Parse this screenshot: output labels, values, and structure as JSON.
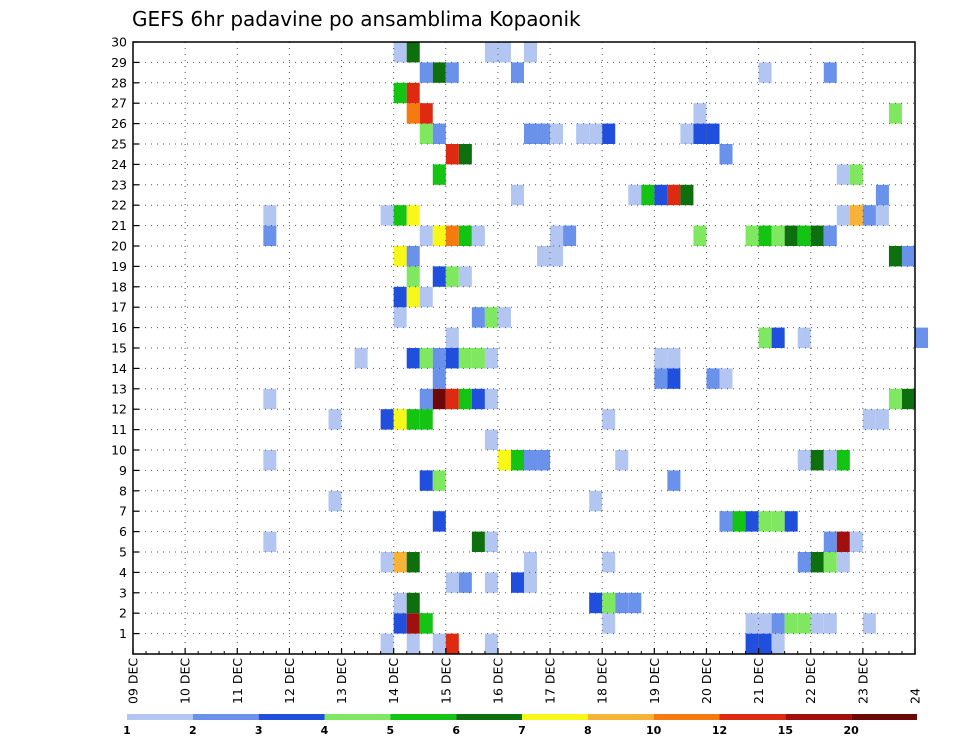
{
  "chart_data": {
    "type": "heatmap",
    "title": "GEFS 6hr padavine po ansamblima Kopaonik",
    "xlabel": "",
    "ylabel": "",
    "x_ticks": [
      "09 DEC",
      "10 DEC",
      "11 DEC",
      "12 DEC",
      "13 DEC",
      "14 DEC",
      "15 DEC",
      "16 DEC",
      "17 DEC",
      "18 DEC",
      "19 DEC",
      "20 DEC",
      "21 DEC",
      "22 DEC",
      "23 DEC",
      "24"
    ],
    "xlim": [
      "09 DEC 00Z",
      "24 DEC 00Z"
    ],
    "y_ticks": [
      1,
      2,
      3,
      4,
      5,
      6,
      7,
      8,
      9,
      10,
      11,
      12,
      13,
      14,
      15,
      16,
      17,
      18,
      19,
      20,
      21,
      22,
      23,
      24,
      25,
      26,
      27,
      28,
      29,
      30
    ],
    "ylim": [
      0,
      30
    ],
    "grid": true,
    "legend": {
      "placement": "bottom",
      "labels": [
        "1",
        "2",
        "3",
        "4",
        "5",
        "6",
        "7",
        "8",
        "10",
        "12",
        "15",
        "20"
      ],
      "colors": [
        "#b3c6f2",
        "#6a92ea",
        "#1f4fdc",
        "#7fe860",
        "#13c413",
        "#0e6f0e",
        "#f7f71a",
        "#f7b338",
        "#f57a10",
        "#de2a10",
        "#a20f0f",
        "#6c0808"
      ]
    },
    "cells_note_level": "cat index 0..11 = colors above",
    "cells": [
      [
        13.75,
        0,
        0
      ],
      [
        14.25,
        0,
        0
      ],
      [
        14.75,
        0,
        0
      ],
      [
        15.0,
        0,
        9
      ],
      [
        15.75,
        0,
        0
      ],
      [
        20.75,
        0,
        2
      ],
      [
        21.0,
        0,
        2
      ],
      [
        21.25,
        0,
        0
      ],
      [
        14.0,
        1,
        2
      ],
      [
        14.25,
        1,
        10
      ],
      [
        14.5,
        1,
        4
      ],
      [
        18.0,
        1,
        0
      ],
      [
        20.75,
        1,
        0
      ],
      [
        21.0,
        1,
        0
      ],
      [
        21.25,
        1,
        1
      ],
      [
        21.5,
        1,
        3
      ],
      [
        21.75,
        1,
        3
      ],
      [
        22.0,
        1,
        0
      ],
      [
        22.25,
        1,
        0
      ],
      [
        23.0,
        1,
        0
      ],
      [
        14.0,
        2,
        0
      ],
      [
        14.25,
        2,
        5
      ],
      [
        17.75,
        2,
        2
      ],
      [
        18.0,
        2,
        3
      ],
      [
        18.25,
        2,
        1
      ],
      [
        18.5,
        2,
        1
      ],
      [
        15.0,
        3,
        0
      ],
      [
        15.25,
        3,
        1
      ],
      [
        15.75,
        3,
        0
      ],
      [
        16.25,
        3,
        2
      ],
      [
        16.5,
        3,
        0
      ],
      [
        13.75,
        4,
        0
      ],
      [
        14.0,
        4,
        7
      ],
      [
        14.25,
        4,
        5
      ],
      [
        16.5,
        4,
        0
      ],
      [
        18.0,
        4,
        0
      ],
      [
        21.75,
        4,
        1
      ],
      [
        22.0,
        4,
        5
      ],
      [
        22.25,
        4,
        3
      ],
      [
        22.5,
        4,
        0
      ],
      [
        11.5,
        5,
        0
      ],
      [
        15.5,
        5,
        5
      ],
      [
        15.75,
        5,
        0
      ],
      [
        22.25,
        5,
        1
      ],
      [
        22.5,
        5,
        10
      ],
      [
        22.75,
        5,
        0
      ],
      [
        14.75,
        6,
        2
      ],
      [
        20.25,
        6,
        1
      ],
      [
        20.5,
        6,
        4
      ],
      [
        20.75,
        6,
        2
      ],
      [
        21.0,
        6,
        3
      ],
      [
        21.25,
        6,
        3
      ],
      [
        21.5,
        6,
        2
      ],
      [
        12.75,
        7,
        0
      ],
      [
        17.75,
        7,
        0
      ],
      [
        14.5,
        8,
        2
      ],
      [
        14.75,
        8,
        3
      ],
      [
        19.25,
        8,
        1
      ],
      [
        11.5,
        9,
        0
      ],
      [
        16.0,
        9,
        6
      ],
      [
        16.25,
        9,
        4
      ],
      [
        16.5,
        9,
        1
      ],
      [
        16.75,
        9,
        1
      ],
      [
        18.25,
        9,
        0
      ],
      [
        21.75,
        9,
        0
      ],
      [
        22.0,
        9,
        5
      ],
      [
        22.25,
        9,
        0
      ],
      [
        22.5,
        9,
        4
      ],
      [
        15.75,
        10,
        0
      ],
      [
        12.75,
        11,
        0
      ],
      [
        13.75,
        11,
        2
      ],
      [
        14.0,
        11,
        6
      ],
      [
        14.25,
        11,
        4
      ],
      [
        14.5,
        11,
        4
      ],
      [
        18.0,
        11,
        0
      ],
      [
        23.0,
        11,
        0
      ],
      [
        23.25,
        11,
        0
      ],
      [
        11.5,
        12,
        0
      ],
      [
        14.5,
        12,
        1
      ],
      [
        14.75,
        12,
        11
      ],
      [
        15.0,
        12,
        9
      ],
      [
        15.25,
        12,
        4
      ],
      [
        15.5,
        12,
        2
      ],
      [
        15.75,
        12,
        0
      ],
      [
        23.5,
        12,
        3
      ],
      [
        23.75,
        12,
        5
      ],
      [
        14.75,
        13,
        1
      ],
      [
        19.0,
        13,
        1
      ],
      [
        19.25,
        13,
        2
      ],
      [
        20.0,
        13,
        1
      ],
      [
        20.25,
        13,
        0
      ],
      [
        13.25,
        14,
        0
      ],
      [
        14.25,
        14,
        2
      ],
      [
        14.5,
        14,
        3
      ],
      [
        14.75,
        14,
        1
      ],
      [
        15.0,
        14,
        2
      ],
      [
        15.25,
        14,
        3
      ],
      [
        15.5,
        14,
        3
      ],
      [
        15.75,
        14,
        0
      ],
      [
        19.0,
        14,
        0
      ],
      [
        19.25,
        14,
        0
      ],
      [
        15.0,
        15,
        0
      ],
      [
        21.0,
        15,
        3
      ],
      [
        21.25,
        15,
        2
      ],
      [
        21.75,
        15,
        0
      ],
      [
        24.0,
        15,
        1
      ],
      [
        14.0,
        16,
        0
      ],
      [
        15.5,
        16,
        1
      ],
      [
        15.75,
        16,
        3
      ],
      [
        16.0,
        16,
        0
      ],
      [
        14.0,
        17,
        2
      ],
      [
        14.25,
        17,
        6
      ],
      [
        14.5,
        17,
        0
      ],
      [
        14.25,
        18,
        3
      ],
      [
        14.75,
        18,
        2
      ],
      [
        15.0,
        18,
        3
      ],
      [
        15.25,
        18,
        0
      ],
      [
        14.0,
        19,
        6
      ],
      [
        14.25,
        19,
        1
      ],
      [
        16.75,
        19,
        0
      ],
      [
        17.0,
        19,
        0
      ],
      [
        23.5,
        19,
        5
      ],
      [
        23.75,
        19,
        1
      ],
      [
        11.5,
        20,
        1
      ],
      [
        14.5,
        20,
        0
      ],
      [
        14.75,
        20,
        6
      ],
      [
        15.0,
        20,
        8
      ],
      [
        15.25,
        20,
        4
      ],
      [
        15.5,
        20,
        0
      ],
      [
        17.0,
        20,
        0
      ],
      [
        17.25,
        20,
        1
      ],
      [
        19.75,
        20,
        3
      ],
      [
        20.75,
        20,
        3
      ],
      [
        21.0,
        20,
        4
      ],
      [
        21.25,
        20,
        3
      ],
      [
        21.5,
        20,
        5
      ],
      [
        21.75,
        20,
        4
      ],
      [
        22.0,
        20,
        5
      ],
      [
        22.25,
        20,
        1
      ],
      [
        11.5,
        21,
        0
      ],
      [
        13.75,
        21,
        0
      ],
      [
        14.0,
        21,
        4
      ],
      [
        14.25,
        21,
        6
      ],
      [
        22.5,
        21,
        0
      ],
      [
        22.75,
        21,
        7
      ],
      [
        23.0,
        21,
        1
      ],
      [
        23.25,
        21,
        0
      ],
      [
        16.25,
        22,
        0
      ],
      [
        18.5,
        22,
        0
      ],
      [
        18.75,
        22,
        4
      ],
      [
        19.0,
        22,
        2
      ],
      [
        19.25,
        22,
        9
      ],
      [
        19.5,
        22,
        5
      ],
      [
        23.25,
        22,
        1
      ],
      [
        14.75,
        23,
        4
      ],
      [
        22.5,
        23,
        0
      ],
      [
        22.75,
        23,
        3
      ],
      [
        15.0,
        24,
        9
      ],
      [
        15.25,
        24,
        5
      ],
      [
        20.25,
        24,
        1
      ],
      [
        14.5,
        25,
        3
      ],
      [
        14.75,
        25,
        1
      ],
      [
        16.5,
        25,
        1
      ],
      [
        16.75,
        25,
        1
      ],
      [
        17.0,
        25,
        0
      ],
      [
        17.5,
        25,
        0
      ],
      [
        17.75,
        25,
        0
      ],
      [
        18.0,
        25,
        2
      ],
      [
        19.5,
        25,
        0
      ],
      [
        19.75,
        25,
        2
      ],
      [
        20.0,
        25,
        2
      ],
      [
        14.25,
        26,
        8
      ],
      [
        14.5,
        26,
        9
      ],
      [
        19.75,
        26,
        0
      ],
      [
        23.5,
        26,
        3
      ],
      [
        14.0,
        27,
        4
      ],
      [
        14.25,
        27,
        9
      ],
      [
        14.5,
        28,
        1
      ],
      [
        14.75,
        28,
        5
      ],
      [
        15.0,
        28,
        1
      ],
      [
        16.25,
        28,
        1
      ],
      [
        21.0,
        28,
        0
      ],
      [
        22.25,
        28,
        1
      ],
      [
        14.0,
        29,
        0
      ],
      [
        14.25,
        29,
        5
      ],
      [
        15.75,
        29,
        0
      ],
      [
        16.0,
        29,
        0
      ],
      [
        16.5,
        29,
        0
      ]
    ]
  }
}
